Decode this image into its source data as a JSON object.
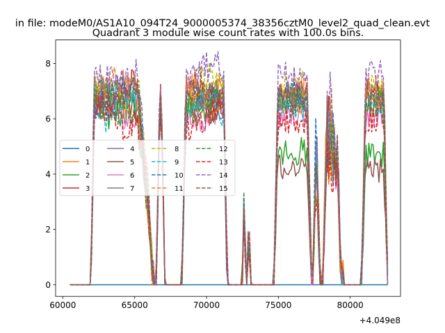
{
  "chart_data": {
    "type": "line",
    "suptitle": "in file: modeM0/AS1A10_094T24_9000005374_38356cztM0_level2_quad_clean.evt",
    "title": "Quadrant 3 module wise count rates with 100.0s bins.",
    "xlabel": "",
    "ylabel": "",
    "x_offset_text": "+4.049e8",
    "xlim": [
      59500,
      83500
    ],
    "ylim": [
      -0.42,
      8.85
    ],
    "xticks": [
      60000,
      65000,
      70000,
      75000,
      80000
    ],
    "xtick_labels": [
      "60000",
      "65000",
      "70000",
      "75000",
      "80000"
    ],
    "yticks": [
      0,
      2,
      4,
      6,
      8
    ],
    "ytick_labels": [
      "0",
      "2",
      "4",
      "6",
      "8"
    ],
    "grid": false,
    "legend": {
      "placement": "center-left",
      "ncol": 4
    },
    "x_start": 60500,
    "x_end": 82600,
    "bin_width_s": 100,
    "visible_windows": [
      {
        "start": 61950,
        "end": 66300,
        "peak_edge": 65200
      },
      {
        "start": 66500,
        "end": 67100
      },
      {
        "start": 68300,
        "end": 71450
      },
      {
        "start": 72500,
        "end": 72750
      },
      {
        "start": 72850,
        "end": 73050
      },
      {
        "start": 74700,
        "end": 77300
      },
      {
        "start": 77400,
        "end": 77900
      },
      {
        "start": 78100,
        "end": 79350
      },
      {
        "start": 79400,
        "end": 79500
      },
      {
        "start": 80800,
        "end": 82600
      }
    ],
    "series": [
      {
        "name": "0",
        "color": "#1f77b4",
        "dash": "solid",
        "level": 0.0
      },
      {
        "name": "1",
        "color": "#ff7f0e",
        "dash": "solid",
        "level": 6.7
      },
      {
        "name": "2",
        "color": "#2ca02c",
        "dash": "solid",
        "level": 6.5,
        "low_segment_level": 4.8
      },
      {
        "name": "3",
        "color": "#d62728",
        "dash": "solid",
        "level": 6.9
      },
      {
        "name": "4",
        "color": "#9467bd",
        "dash": "solid",
        "level": 6.8
      },
      {
        "name": "5",
        "color": "#8c564b",
        "dash": "solid",
        "level": 6.6,
        "low_segment_level": 4.2
      },
      {
        "name": "6",
        "color": "#e377c2",
        "dash": "solid",
        "level": 6.2
      },
      {
        "name": "7",
        "color": "#7f7f7f",
        "dash": "solid",
        "level": 6.7
      },
      {
        "name": "8",
        "color": "#bcbd22",
        "dash": "dashed",
        "level": 7.2
      },
      {
        "name": "9",
        "color": "#17becf",
        "dash": "dashed",
        "level": 6.4
      },
      {
        "name": "10",
        "color": "#1f77b4",
        "dash": "dashed",
        "level": 6.9
      },
      {
        "name": "11",
        "color": "#ff7f0e",
        "dash": "dashed",
        "level": 7.0
      },
      {
        "name": "12",
        "color": "#2ca02c",
        "dash": "dashed",
        "level": 6.6
      },
      {
        "name": "13",
        "color": "#d62728",
        "dash": "dashed",
        "level": 6.0
      },
      {
        "name": "14",
        "color": "#9467bd",
        "dash": "dashed",
        "level": 7.6
      },
      {
        "name": "15",
        "color": "#8c564b",
        "dash": "dashed",
        "level": 6.8
      }
    ]
  }
}
